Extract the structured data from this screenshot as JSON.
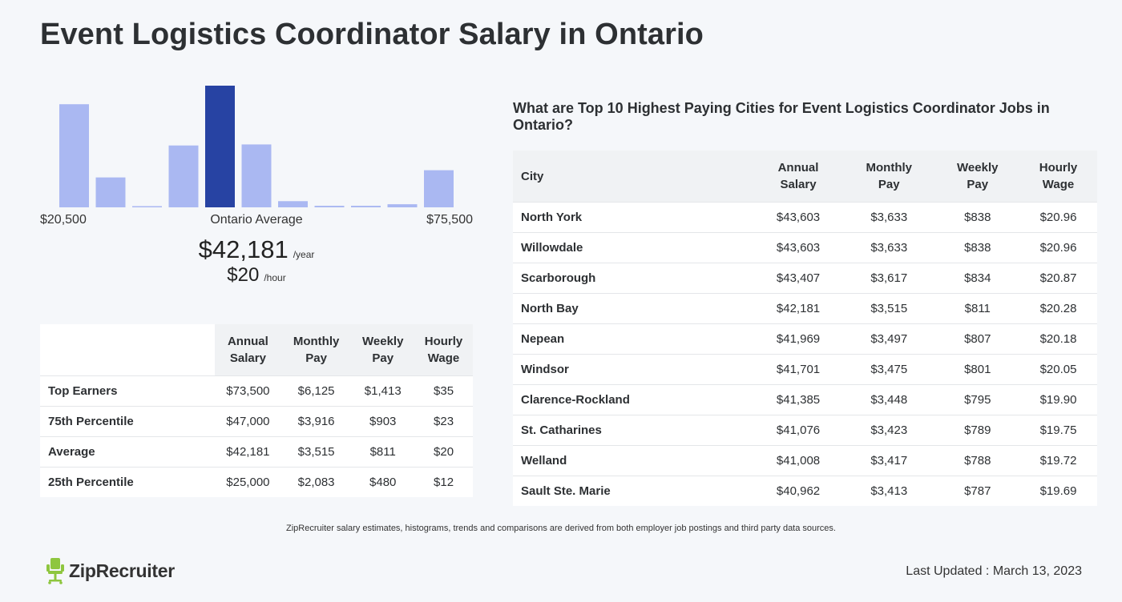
{
  "page_title": "Event Logistics Coordinator Salary in Ontario",
  "chart_data": {
    "type": "bar",
    "values": [
      100,
      29,
      1,
      60,
      118,
      61,
      6,
      1.5,
      1.5,
      3,
      36
    ],
    "highlight_index": 4,
    "colors": {
      "bar": "#aab8f2",
      "highlight": "#2743a3"
    },
    "min_label": "$20,500",
    "avg_label": "Ontario Average",
    "max_label": "$75,500"
  },
  "average": {
    "yearly": "$42,181",
    "yearly_unit": "/year",
    "hourly": "$20",
    "hourly_unit": "/hour"
  },
  "percentile_table": {
    "headers": [
      [
        "Annual",
        "Salary"
      ],
      [
        "Monthly",
        "Pay"
      ],
      [
        "Weekly",
        "Pay"
      ],
      [
        "Hourly",
        "Wage"
      ]
    ],
    "rows": [
      {
        "label": "Top Earners",
        "values": [
          "$73,500",
          "$6,125",
          "$1,413",
          "$35"
        ]
      },
      {
        "label": "75th Percentile",
        "values": [
          "$47,000",
          "$3,916",
          "$903",
          "$23"
        ]
      },
      {
        "label": "Average",
        "values": [
          "$42,181",
          "$3,515",
          "$811",
          "$20"
        ]
      },
      {
        "label": "25th Percentile",
        "values": [
          "$25,000",
          "$2,083",
          "$480",
          "$12"
        ]
      }
    ]
  },
  "cities": {
    "title": "What are Top 10 Highest Paying Cities for Event Logistics Coordinator Jobs in Ontario?",
    "headers": [
      "City",
      [
        "Annual",
        "Salary"
      ],
      [
        "Monthly",
        "Pay"
      ],
      [
        "Weekly",
        "Pay"
      ],
      [
        "Hourly",
        "Wage"
      ]
    ],
    "rows": [
      {
        "city": "North York",
        "values": [
          "$43,603",
          "$3,633",
          "$838",
          "$20.96"
        ]
      },
      {
        "city": "Willowdale",
        "values": [
          "$43,603",
          "$3,633",
          "$838",
          "$20.96"
        ]
      },
      {
        "city": "Scarborough",
        "values": [
          "$43,407",
          "$3,617",
          "$834",
          "$20.87"
        ]
      },
      {
        "city": "North Bay",
        "values": [
          "$42,181",
          "$3,515",
          "$811",
          "$20.28"
        ]
      },
      {
        "city": "Nepean",
        "values": [
          "$41,969",
          "$3,497",
          "$807",
          "$20.18"
        ]
      },
      {
        "city": "Windsor",
        "values": [
          "$41,701",
          "$3,475",
          "$801",
          "$20.05"
        ]
      },
      {
        "city": "Clarence-Rockland",
        "values": [
          "$41,385",
          "$3,448",
          "$795",
          "$19.90"
        ]
      },
      {
        "city": "St. Catharines",
        "values": [
          "$41,076",
          "$3,423",
          "$789",
          "$19.75"
        ]
      },
      {
        "city": "Welland",
        "values": [
          "$41,008",
          "$3,417",
          "$788",
          "$19.72"
        ]
      },
      {
        "city": "Sault Ste. Marie",
        "values": [
          "$40,962",
          "$3,413",
          "$787",
          "$19.69"
        ]
      }
    ]
  },
  "footnote": "ZipRecruiter salary estimates, histograms, trends and comparisons are derived from both employer job postings and third party data sources.",
  "brand": {
    "name": "ZipRecruiter",
    "icon": "chair-icon",
    "color": "#8ec63f"
  },
  "last_updated": "Last Updated : March 13, 2023"
}
